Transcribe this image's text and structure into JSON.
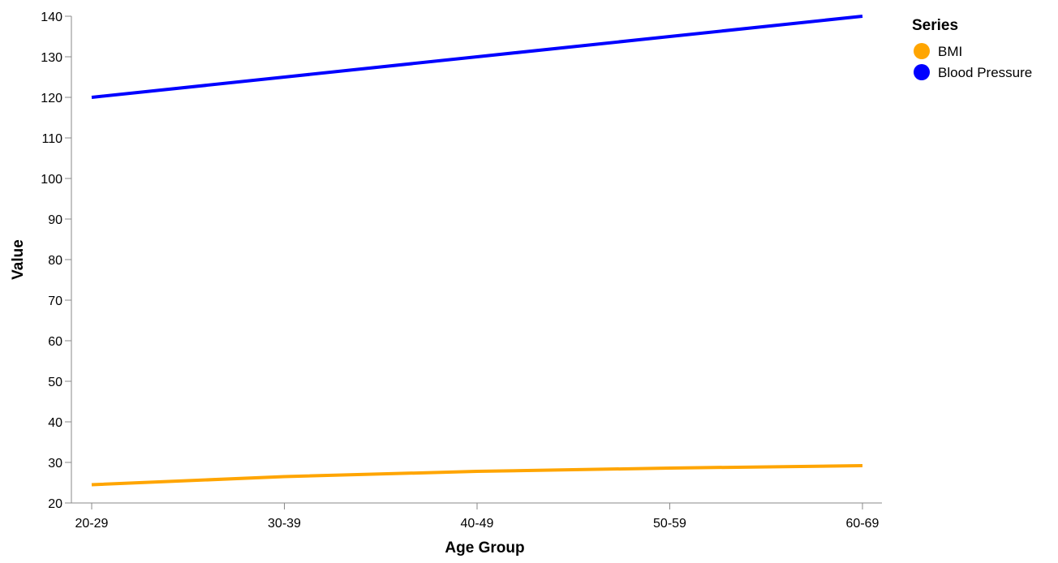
{
  "chart_data": {
    "type": "line",
    "categories": [
      "20-29",
      "30-39",
      "40-49",
      "50-59",
      "60-69"
    ],
    "series": [
      {
        "name": "BMI",
        "color": "#FFA500",
        "values": [
          24.5,
          26.5,
          27.8,
          28.6,
          29.2
        ]
      },
      {
        "name": "Blood Pressure",
        "color": "#0000FF",
        "values": [
          120,
          125,
          130,
          135,
          140
        ]
      }
    ],
    "xlabel": "Age Group",
    "ylabel": "Value",
    "ylim": [
      20,
      140
    ],
    "yticks": [
      20,
      30,
      40,
      50,
      60,
      70,
      80,
      90,
      100,
      110,
      120,
      130,
      140
    ],
    "grid": false,
    "legend": {
      "title": "Series",
      "position": "top-right"
    }
  }
}
